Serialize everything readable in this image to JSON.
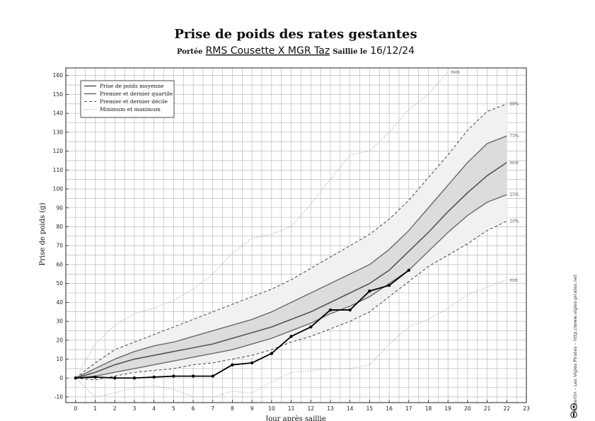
{
  "title": "Prise de poids des rates gestantes",
  "subtitle": {
    "portee_label": "Portée",
    "portee_value": "RMS Cousette X MGR Taz",
    "saillie_label": "Saillie le",
    "saillie_value": "16/12/24"
  },
  "credit": "N. Bertin – Les Vigies Pirates – http://www.vigies-pirates.net",
  "colors": {
    "mean": "#555555",
    "quartile": "#6a6a6a",
    "decile": "#555555",
    "minmax": "#9a9a9a",
    "quartile_fill": "#dcdcdc",
    "decile_fill": "#f1f1f1",
    "observed": "#000000",
    "grid": "#b0b0b0"
  },
  "chart_data": {
    "type": "line",
    "title": "Prise de poids des rates gestantes",
    "xlabel": "Jour après saillie",
    "ylabel": "Prise de poids (g)",
    "xlim": [
      -0.5,
      23
    ],
    "ylim": [
      -13,
      164
    ],
    "xticks": [
      0,
      1,
      2,
      3,
      4,
      5,
      6,
      7,
      8,
      9,
      10,
      11,
      12,
      13,
      14,
      15,
      16,
      17,
      18,
      19,
      20,
      21,
      22,
      23
    ],
    "yticks": [
      -10,
      0,
      10,
      20,
      30,
      40,
      50,
      60,
      70,
      80,
      90,
      100,
      110,
      120,
      130,
      140,
      150,
      160
    ],
    "grid": true,
    "legend_position": "top-left",
    "legend": [
      {
        "label": "Prise de poids moyenne",
        "style": "solid-dark"
      },
      {
        "label": "Premier et dernier quartile",
        "style": "solid"
      },
      {
        "label": "Premier et dernier décile",
        "style": "dashed"
      },
      {
        "label": "Minimum et maximum",
        "style": "dotted"
      }
    ],
    "band_labels": [
      "max",
      "90%",
      "75%",
      "moy",
      "25%",
      "10%",
      "min"
    ],
    "x": [
      0,
      1,
      2,
      3,
      4,
      5,
      6,
      7,
      8,
      9,
      10,
      11,
      12,
      13,
      14,
      15,
      16,
      17,
      18,
      19,
      20,
      21,
      22
    ],
    "series": [
      {
        "name": "max",
        "style": "dotted",
        "values": [
          0,
          18,
          28,
          34,
          37,
          41,
          47,
          55,
          66,
          74,
          76,
          80,
          92,
          105,
          118,
          120,
          130,
          142,
          150,
          162,
          null,
          null,
          null
        ]
      },
      {
        "name": "90%",
        "style": "dashed",
        "values": [
          0,
          8,
          15,
          19,
          23,
          27,
          31,
          35,
          39,
          43,
          47,
          52,
          58,
          64,
          70,
          76,
          84,
          94,
          106,
          118,
          131,
          141,
          145
        ]
      },
      {
        "name": "75%",
        "style": "solid",
        "values": [
          0,
          5,
          10,
          14,
          17,
          19,
          22,
          25,
          28,
          31,
          35,
          40,
          45,
          50,
          55,
          60,
          68,
          78,
          90,
          102,
          114,
          124,
          128
        ]
      },
      {
        "name": "moy",
        "style": "solid-dark",
        "values": [
          0,
          3,
          7,
          10,
          12,
          14,
          16,
          18,
          21,
          24,
          27,
          31,
          35,
          40,
          45,
          50,
          57,
          67,
          77,
          88,
          98,
          107,
          114
        ]
      },
      {
        "name": "25%",
        "style": "solid",
        "values": [
          0,
          1,
          3,
          5,
          7,
          9,
          11,
          13,
          15,
          18,
          21,
          25,
          29,
          34,
          38,
          43,
          50,
          57,
          67,
          77,
          86,
          93,
          97
        ]
      },
      {
        "name": "10%",
        "style": "dashed",
        "values": [
          0,
          -1,
          1,
          3,
          4,
          5,
          7,
          8,
          10,
          12,
          15,
          19,
          22,
          26,
          30,
          35,
          43,
          51,
          59,
          65,
          71,
          78,
          83
        ]
      },
      {
        "name": "min",
        "style": "dotted",
        "values": [
          0,
          -10,
          -8,
          -5,
          -4,
          -6,
          -10,
          -10,
          -7,
          -8,
          -2,
          3,
          4,
          5,
          5,
          7,
          18,
          27,
          31,
          37,
          44,
          48,
          52
        ]
      }
    ],
    "observed": {
      "x": [
        0,
        1,
        2,
        3,
        4,
        5,
        6,
        7,
        8,
        9,
        10,
        11,
        12,
        13,
        14,
        15,
        16,
        17
      ],
      "values": [
        0,
        0.5,
        0,
        0,
        0.5,
        1,
        1,
        1,
        7,
        8,
        13,
        22,
        27,
        36,
        36,
        46,
        49,
        57
      ]
    }
  }
}
